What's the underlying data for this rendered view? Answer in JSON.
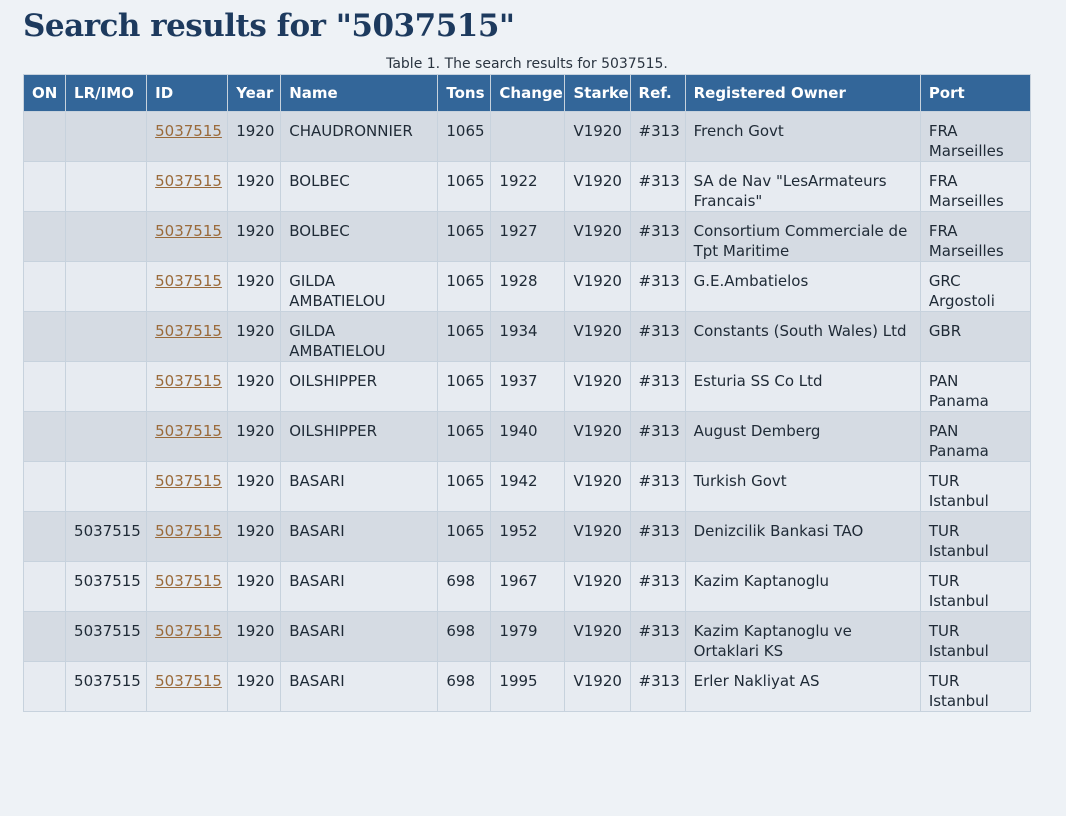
{
  "title": "Search results for \"5037515\"",
  "caption": "Table 1. The search results for 5037515.",
  "table": {
    "headers": [
      "ON",
      "LR/IMO",
      "ID",
      "Year",
      "Name",
      "Tons",
      "Change",
      "Starke",
      "Ref.",
      "Registered Owner",
      "Port"
    ],
    "rows": [
      {
        "on": "",
        "lrimo": "",
        "id": "5037515",
        "year": "1920",
        "name": "CHAUDRONNIER",
        "tons": "1065",
        "change": "",
        "starke": "V1920",
        "ref": "#313",
        "owner": "French Govt",
        "port_country": "FRA",
        "port_city": "Marseilles"
      },
      {
        "on": "",
        "lrimo": "",
        "id": "5037515",
        "year": "1920",
        "name": "BOLBEC",
        "tons": "1065",
        "change": "1922",
        "starke": "V1920",
        "ref": "#313",
        "owner": "SA de Nav \"LesArmateurs Francais\"",
        "port_country": "FRA",
        "port_city": "Marseilles"
      },
      {
        "on": "",
        "lrimo": "",
        "id": "5037515",
        "year": "1920",
        "name": "BOLBEC",
        "tons": "1065",
        "change": "1927",
        "starke": "V1920",
        "ref": "#313",
        "owner": "Consortium Commerciale de Tpt Maritime",
        "port_country": "FRA",
        "port_city": "Marseilles"
      },
      {
        "on": "",
        "lrimo": "",
        "id": "5037515",
        "year": "1920",
        "name": "GILDA AMBATIELOU",
        "tons": "1065",
        "change": "1928",
        "starke": "V1920",
        "ref": "#313",
        "owner": "G.E.Ambatielos",
        "port_country": "GRC",
        "port_city": "Argostoli"
      },
      {
        "on": "",
        "lrimo": "",
        "id": "5037515",
        "year": "1920",
        "name": "GILDA AMBATIELOU",
        "tons": "1065",
        "change": "1934",
        "starke": "V1920",
        "ref": "#313",
        "owner": "Constants (South Wales) Ltd",
        "port_country": "GBR",
        "port_city": ""
      },
      {
        "on": "",
        "lrimo": "",
        "id": "5037515",
        "year": "1920",
        "name": "OILSHIPPER",
        "tons": "1065",
        "change": "1937",
        "starke": "V1920",
        "ref": "#313",
        "owner": "Esturia SS Co Ltd",
        "port_country": "PAN",
        "port_city": "Panama"
      },
      {
        "on": "",
        "lrimo": "",
        "id": "5037515",
        "year": "1920",
        "name": "OILSHIPPER",
        "tons": "1065",
        "change": "1940",
        "starke": "V1920",
        "ref": "#313",
        "owner": "August Demberg",
        "port_country": "PAN",
        "port_city": "Panama"
      },
      {
        "on": "",
        "lrimo": "",
        "id": "5037515",
        "year": "1920",
        "name": "BASARI",
        "tons": "1065",
        "change": "1942",
        "starke": "V1920",
        "ref": "#313",
        "owner": "Turkish Govt",
        "port_country": "TUR",
        "port_city": "Istanbul"
      },
      {
        "on": "",
        "lrimo": "5037515",
        "id": "5037515",
        "year": "1920",
        "name": "BASARI",
        "tons": "1065",
        "change": "1952",
        "starke": "V1920",
        "ref": "#313",
        "owner": "Denizcilik Bankasi TAO",
        "port_country": "TUR",
        "port_city": "Istanbul"
      },
      {
        "on": "",
        "lrimo": "5037515",
        "id": "5037515",
        "year": "1920",
        "name": "BASARI",
        "tons": "698",
        "change": "1967",
        "starke": "V1920",
        "ref": "#313",
        "owner": "Kazim Kaptanoglu",
        "port_country": "TUR",
        "port_city": "Istanbul"
      },
      {
        "on": "",
        "lrimo": "5037515",
        "id": "5037515",
        "year": "1920",
        "name": "BASARI",
        "tons": "698",
        "change": "1979",
        "starke": "V1920",
        "ref": "#313",
        "owner": "Kazim Kaptanoglu ve Ortaklari KS",
        "port_country": "TUR",
        "port_city": "Istanbul"
      },
      {
        "on": "",
        "lrimo": "5037515",
        "id": "5037515",
        "year": "1920",
        "name": "BASARI",
        "tons": "698",
        "change": "1995",
        "starke": "V1920",
        "ref": "#313",
        "owner": "Erler Nakliyat AS",
        "port_country": "TUR",
        "port_city": "Istanbul"
      }
    ]
  },
  "colors": {
    "header_bg": "#336699",
    "title": "#1d3a5e",
    "link": "#9a6a3a",
    "row_odd": "#d5dbe3",
    "row_even": "#e7ebf1"
  }
}
